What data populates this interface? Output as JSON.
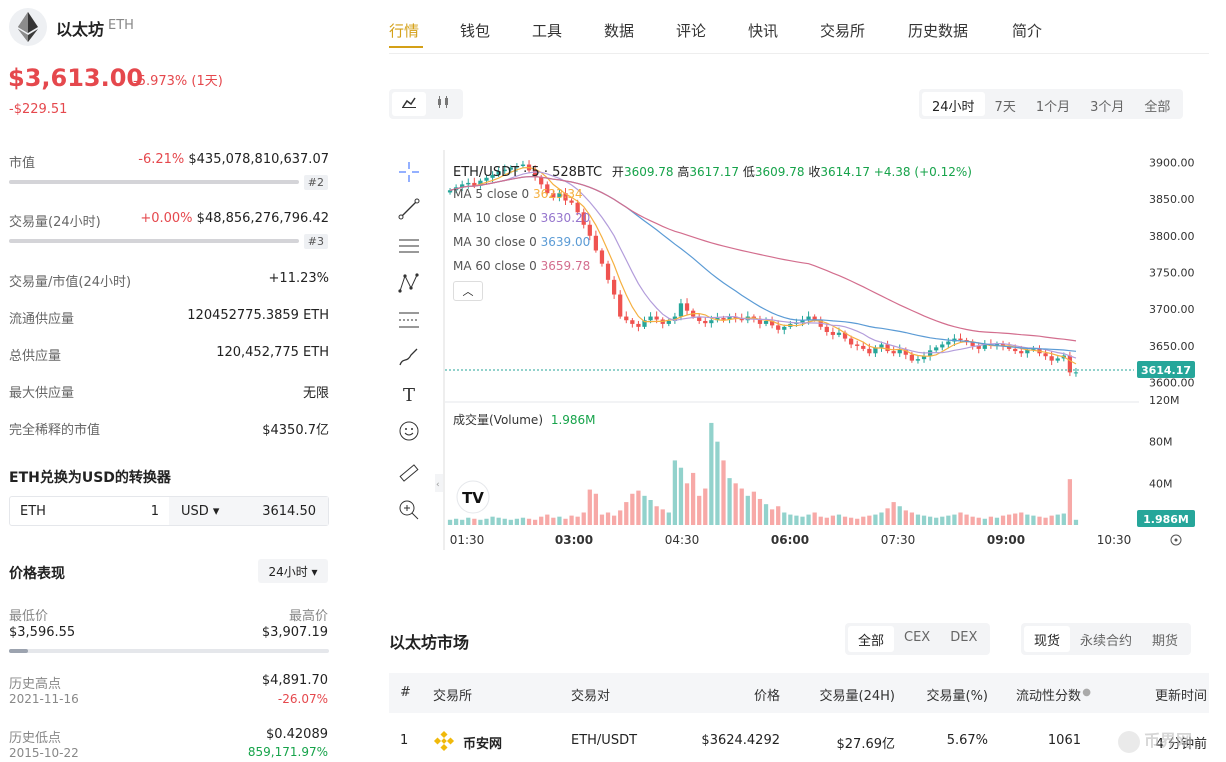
{
  "coin": {
    "name": "以太坊",
    "symbol": "ETH",
    "price": "$3,613.00",
    "change_pct": "-5.973% (1天)",
    "change_abs": "-$229.51"
  },
  "stats": {
    "market_cap": {
      "label": "市值",
      "change": "-6.21%",
      "value": "$435,078,810,637.07",
      "rank": "#2",
      "bar_fraction": 0.97
    },
    "volume": {
      "label": "交易量(24小时)",
      "change": "+0.00%",
      "value": "$48,856,276,796.42",
      "rank": "#3",
      "bar_fraction": 0.97
    },
    "rows": [
      {
        "label": "交易量/市值(24小时)",
        "value": "+11.23%"
      },
      {
        "label": "流通供应量",
        "value": "120452775.3859 ETH"
      },
      {
        "label": "总供应量",
        "value": "120,452,775 ETH"
      },
      {
        "label": "最大供应量",
        "value": "无限"
      },
      {
        "label": "完全稀释的市值",
        "value": "$4350.7亿"
      }
    ]
  },
  "converter": {
    "title": "ETH兑换为USD的转换器",
    "from": "ETH",
    "amount": "1",
    "to": "USD ▾",
    "result": "3614.50"
  },
  "performance": {
    "title": "价格表现",
    "period": "24小时 ▾",
    "low_label": "最低价",
    "low": "$3,596.55",
    "high_label": "最高价",
    "high": "$3,907.19",
    "range_fraction": 0.06,
    "ath_label": "历史高点",
    "ath_date": "2021-11-16",
    "ath": "$4,891.70",
    "ath_change": "-26.07%",
    "atl_label": "历史低点",
    "atl_date": "2015-10-22",
    "atl": "$0.42089",
    "atl_change": "859,171.97%"
  },
  "tabs": [
    "行情",
    "钱包",
    "工具",
    "数据",
    "评论",
    "快讯",
    "交易所",
    "历史数据",
    "简介"
  ],
  "chart_controls": {
    "ranges": [
      "24小时",
      "7天",
      "1个月",
      "3个月",
      "全部"
    ],
    "active": "24小时"
  },
  "chart_header": {
    "pair": "ETH/USDT · 5 · 528BTC",
    "open_label": "开",
    "open": "3609.78",
    "high_label": "高",
    "high": "3617.17",
    "low_label": "低",
    "low": "3609.78",
    "close_label": "收",
    "close": "3614.17",
    "chg": "+4.38 (+0.12%)",
    "ma5_label": "MA 5 close 0",
    "ma5": "3623.34",
    "ma10_label": "MA 10 close 0",
    "ma10": "3630.20",
    "ma30_label": "MA 30 close 0",
    "ma30": "3639.00",
    "ma60_label": "MA 60 close 0",
    "ma60": "3659.78",
    "volume_label": "成交量(Volume)",
    "volume": "1.986M",
    "last_price_tag": "3614.17",
    "last_volume_tag": "1.986M",
    "colors": {
      "up": "#26a69a",
      "down": "#ef5350",
      "ma5": "#f5b041",
      "ma10": "#b39ddb",
      "ma30": "#5b9bd5",
      "ma60": "#d36e8e"
    }
  },
  "chart_data": {
    "type": "candlestick",
    "x_ticks": [
      "01:30",
      "03:00",
      "04:30",
      "06:00",
      "07:30",
      "09:00",
      "10:30"
    ],
    "y_ticks": [
      "3900.00",
      "3850.00",
      "3800.00",
      "3750.00",
      "3700.00",
      "3650.00",
      "3600.00"
    ],
    "ylim": [
      3590,
      3910
    ],
    "volume_ticks": [
      "120M",
      "80M",
      "40M"
    ],
    "volume_ylim": [
      0,
      120
    ],
    "close_series": [
      3862,
      3866,
      3870,
      3872,
      3868,
      3875,
      3879,
      3883,
      3888,
      3890,
      3893,
      3895,
      3897,
      3889,
      3880,
      3870,
      3858,
      3852,
      3858,
      3848,
      3845,
      3832,
      3815,
      3800,
      3780,
      3762,
      3740,
      3720,
      3690,
      3685,
      3680,
      3676,
      3685,
      3690,
      3686,
      3680,
      3684,
      3690,
      3708,
      3698,
      3690,
      3684,
      3681,
      3685,
      3688,
      3686,
      3690,
      3688,
      3685,
      3690,
      3687,
      3680,
      3684,
      3678,
      3672,
      3676,
      3680,
      3682,
      3685,
      3690,
      3686,
      3676,
      3669,
      3665,
      3668,
      3660,
      3652,
      3650,
      3646,
      3640,
      3648,
      3652,
      3643,
      3640,
      3645,
      3638,
      3630,
      3632,
      3636,
      3644,
      3648,
      3652,
      3656,
      3660,
      3658,
      3655,
      3650,
      3646,
      3652,
      3650,
      3653,
      3650,
      3646,
      3643,
      3640,
      3645,
      3646,
      3640,
      3636,
      3630,
      3633,
      3637,
      3614,
      3614
    ],
    "volume_series": [
      5,
      6,
      5,
      7,
      6,
      5,
      6,
      8,
      7,
      6,
      5,
      6,
      7,
      6,
      5,
      8,
      10,
      7,
      8,
      6,
      9,
      8,
      12,
      34,
      30,
      10,
      12,
      9,
      14,
      22,
      30,
      33,
      28,
      24,
      18,
      15,
      12,
      62,
      55,
      40,
      50,
      28,
      35,
      98,
      80,
      62,
      45,
      40,
      35,
      28,
      32,
      25,
      20,
      15,
      18,
      12,
      10,
      9,
      8,
      10,
      12,
      8,
      7,
      9,
      10,
      8,
      7,
      6,
      8,
      9,
      10,
      12,
      16,
      22,
      18,
      14,
      12,
      10,
      9,
      8,
      7,
      8,
      9,
      10,
      12,
      10,
      8,
      7,
      6,
      8,
      7,
      9,
      10,
      11,
      12,
      10,
      9,
      8,
      7,
      9,
      10,
      11,
      44,
      5
    ]
  },
  "market": {
    "title": "以太坊市场",
    "filters": [
      "全部",
      "CEX",
      "DEX"
    ],
    "filter_active": "全部",
    "types": [
      "现货",
      "永续合约",
      "期货"
    ],
    "type_active": "现货",
    "columns": [
      "#",
      "交易所",
      "交易对",
      "价格",
      "交易量(24H)",
      "交易量(%)",
      "流动性分数",
      "更新时间"
    ],
    "rows": [
      {
        "rank": "1",
        "exchange": "币安网",
        "pair": "ETH/USDT",
        "price": "$3624.4292",
        "volume": "$27.69亿",
        "volume_pct": "5.67%",
        "liquidity": "1061",
        "updated": "4 分钟前"
      }
    ]
  },
  "watermark": "币界网"
}
